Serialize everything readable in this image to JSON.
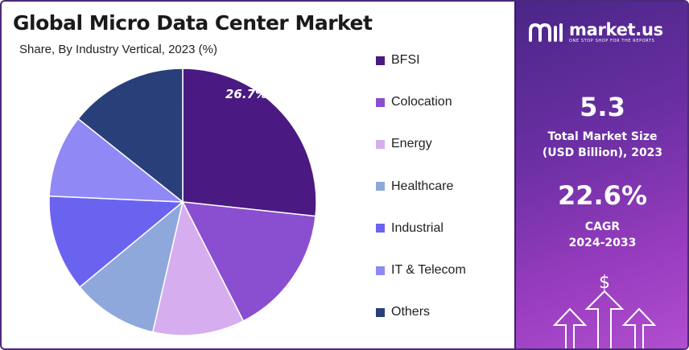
{
  "title": "Global Micro Data Center Market",
  "subtitle": "Share, By Industry Vertical, 2023 (%)",
  "chart_data": {
    "type": "pie",
    "title": "Global Micro Data Center Market",
    "subtitle": "Share, By Industry Vertical, 2023 (%)",
    "categories": [
      "BFSI",
      "Colocation",
      "Energy",
      "Healthcare",
      "Industrial",
      "IT & Telecom",
      "Others"
    ],
    "values": [
      26.7,
      15.8,
      11.1,
      10.4,
      11.7,
      10.0,
      14.3
    ],
    "colors": [
      "#4a1a82",
      "#8a4fd0",
      "#d6aef0",
      "#8fa8dc",
      "#6a63f0",
      "#9088f4",
      "#283f7a"
    ],
    "data_labels": [
      {
        "category": "BFSI",
        "text": "26.7%"
      }
    ],
    "legend_position": "right"
  },
  "legend": [
    {
      "label": "BFSI",
      "color": "#4a1a82"
    },
    {
      "label": "Colocation",
      "color": "#8a4fd0"
    },
    {
      "label": "Energy",
      "color": "#d6aef0"
    },
    {
      "label": "Healthcare",
      "color": "#8fa8dc"
    },
    {
      "label": "Industrial",
      "color": "#6a63f0"
    },
    {
      "label": "IT & Telecom",
      "color": "#9088f4"
    },
    {
      "label": "Others",
      "color": "#283f7a"
    }
  ],
  "panel": {
    "brand": "market.us",
    "tagline": "ONE STOP SHOP FOR THE REPORTS",
    "market_size_value": "5.3",
    "market_size_label_1": "Total Market Size",
    "market_size_label_2": "(USD Billion), 2023",
    "cagr_value": "22.6%",
    "cagr_label_1": "CAGR",
    "cagr_label_2": "2024-2033",
    "dollar_symbol": "$",
    "colors": {
      "gradient_start": "#4a2688",
      "gradient_end": "#b04fcf"
    }
  }
}
